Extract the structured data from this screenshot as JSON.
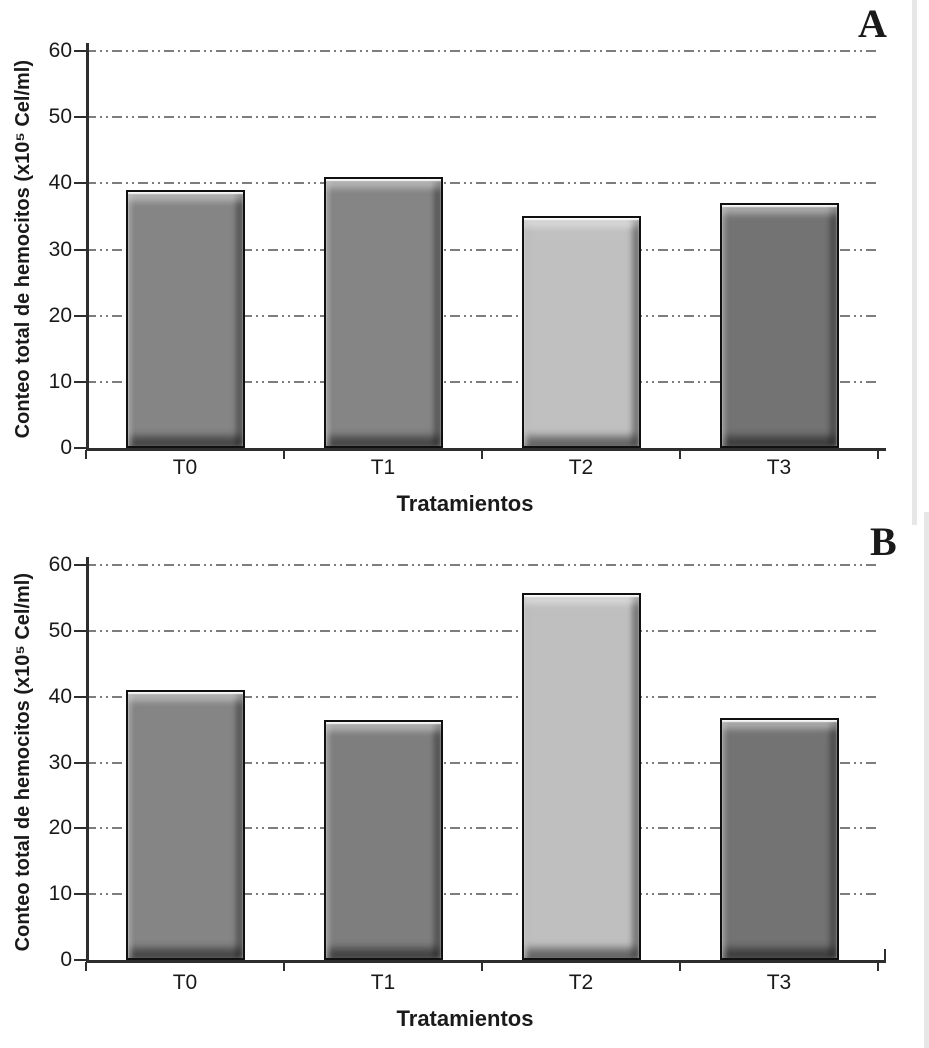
{
  "figure": {
    "background": "#ffffff",
    "text_color": "#1a1a1a",
    "gridline_color": "#7d7d7d",
    "axis_color": "#2e2e2e"
  },
  "chart_data": [
    {
      "type": "bar",
      "panel_label": "A",
      "title": "",
      "xlabel": "Tratamientos",
      "ylabel": "Conteo total de hemocitos (x10⁵ Cel/ml)",
      "categories": [
        "T0",
        "T1",
        "T2",
        "T3"
      ],
      "values": [
        39,
        41,
        35,
        37
      ],
      "ylim": [
        0,
        60
      ],
      "yticks": [
        0,
        10,
        20,
        30,
        40,
        50,
        60
      ],
      "grid": "horizontal dash-dot",
      "legend": "none",
      "bar_colors": [
        "#858585",
        "#858585",
        "#c0c0c0",
        "#737373"
      ],
      "bar_border_color": "#101010"
    },
    {
      "type": "bar",
      "panel_label": "B",
      "title": "",
      "xlabel": "Tratamientos",
      "ylabel": "Conteo total de hemocitos (x10⁵ Cel/ml)",
      "categories": [
        "T0",
        "T1",
        "T2",
        "T3"
      ],
      "values": [
        41,
        36.5,
        55.8,
        36.8
      ],
      "ylim": [
        0,
        60
      ],
      "yticks": [
        0,
        10,
        20,
        30,
        40,
        50,
        60
      ],
      "grid": "horizontal dash-dot",
      "legend": "none",
      "bar_colors": [
        "#858585",
        "#7e7e7e",
        "#bfbfbf",
        "#737373"
      ],
      "bar_border_color": "#101010"
    }
  ]
}
